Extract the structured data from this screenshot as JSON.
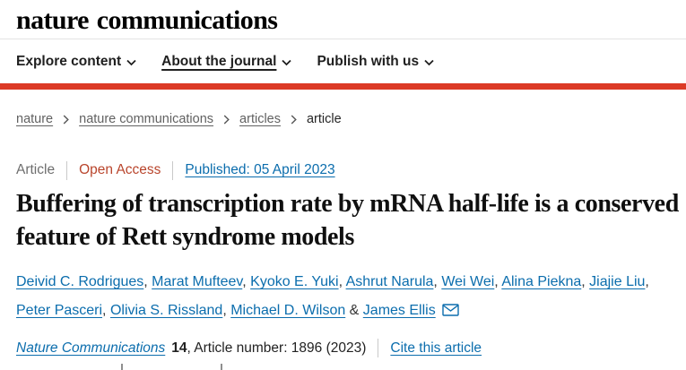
{
  "header": {
    "logo": "nature communications",
    "nav": [
      {
        "label": "Explore content",
        "underlined": false
      },
      {
        "label": "About the journal",
        "underlined": true
      },
      {
        "label": "Publish with us",
        "underlined": false
      }
    ]
  },
  "breadcrumb": [
    {
      "label": "nature",
      "link": true
    },
    {
      "label": "nature communications",
      "link": true
    },
    {
      "label": "articles",
      "link": true
    },
    {
      "label": "article",
      "link": false
    }
  ],
  "article_meta": {
    "type_label": "Article",
    "access_label": "Open Access",
    "published_label": "Published: 05 April 2023"
  },
  "title": "Buffering of transcription rate by mRNA half-life is a conserved feature of Rett syndrome models",
  "authors": {
    "names": [
      "Deivid C. Rodrigues",
      "Marat Mufteev",
      "Kyoko E. Yuki",
      "Ashrut Narula",
      "Wei Wei",
      "Alina Piekna",
      "Jiajie Liu",
      "Peter Pasceri",
      "Olivia S. Rissland",
      "Michael D. Wilson",
      "James Ellis"
    ],
    "email_icon": "envelope-icon"
  },
  "citation": {
    "journal": "Nature Communications",
    "volume": "14",
    "article_number_text": ", Article number: 1896 (2023)",
    "cite_link": "Cite this article"
  },
  "colors": {
    "brand_red": "#dc3a26",
    "link_blue": "#0b6dad",
    "open_access": "#b9452c",
    "breadcrumb_gray": "#616161"
  }
}
